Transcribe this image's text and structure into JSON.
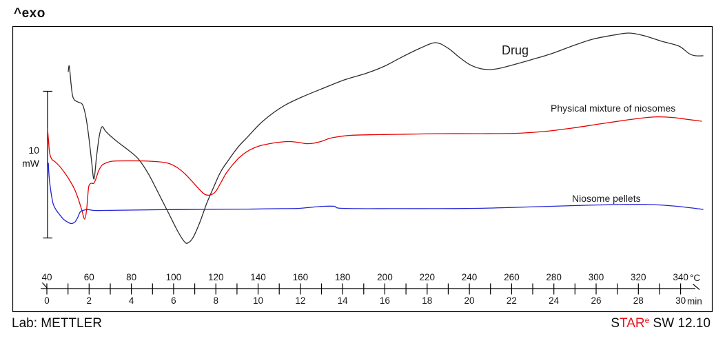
{
  "header": {
    "exo_label": "^exo"
  },
  "scale_bar": {
    "value": "10",
    "unit": "mW"
  },
  "axis": {
    "temp_unit": "°C",
    "time_unit": "min"
  },
  "footer": {
    "lab": "Lab: METTLER",
    "software": {
      "s": "S",
      "tar": "TAR",
      "e": "e",
      "rest": " SW 12.10"
    }
  },
  "colors": {
    "star_red": "#e8111c",
    "axis_black": "#000000"
  },
  "chart_data": {
    "type": "line",
    "description": "DSC thermogram, exothermic up (^exo), heat flow vs temperature/time",
    "x_axis": {
      "temp_min": 40,
      "temp_max": 340,
      "temp_unit": "°C",
      "tick_step_c": 10,
      "temp_labels": [
        40,
        60,
        80,
        100,
        120,
        140,
        160,
        180,
        200,
        220,
        240,
        260,
        280,
        300,
        320,
        340
      ],
      "time_min": 0,
      "time_max": 30,
      "time_unit": "min",
      "time_labels": [
        0,
        2,
        4,
        6,
        8,
        10,
        12,
        14,
        16,
        18,
        20,
        22,
        24,
        26,
        28,
        30
      ]
    },
    "y_axis": {
      "unit": "mW",
      "scale_bar_mw": 10,
      "absolute_scale": false
    },
    "legend_position": "labels-near-curves",
    "grid": false,
    "series": [
      {
        "id": "drug",
        "name": "Drug",
        "color": "#2d2d2d",
        "points": [
          [
            50.1,
            11.69
          ],
          [
            50.6,
            12.07
          ],
          [
            51.4,
            10.94
          ],
          [
            52.1,
            10.09
          ],
          [
            53.0,
            9.77
          ],
          [
            54.7,
            9.62
          ],
          [
            56.3,
            9.53
          ],
          [
            57.3,
            9.3
          ],
          [
            58.6,
            8.5
          ],
          [
            59.9,
            7.18
          ],
          [
            61.2,
            5.54
          ],
          [
            62.3,
            4.37
          ],
          [
            63.5,
            5.87
          ],
          [
            64.8,
            7.28
          ],
          [
            66.1,
            7.93
          ],
          [
            67.7,
            7.65
          ],
          [
            70.0,
            7.32
          ],
          [
            73.9,
            6.85
          ],
          [
            78.2,
            6.38
          ],
          [
            83.1,
            5.77
          ],
          [
            88.0,
            4.74
          ],
          [
            92.9,
            3.38
          ],
          [
            97.7,
            2.02
          ],
          [
            102.0,
            0.8
          ],
          [
            104.9,
            0.14
          ],
          [
            106.6,
            0.0
          ],
          [
            109.2,
            0.38
          ],
          [
            112.4,
            1.41
          ],
          [
            115.7,
            2.72
          ],
          [
            118.9,
            3.8
          ],
          [
            122.2,
            4.84
          ],
          [
            126.1,
            5.68
          ],
          [
            130.4,
            6.53
          ],
          [
            135.3,
            7.28
          ],
          [
            140.8,
            8.12
          ],
          [
            146.7,
            8.83
          ],
          [
            153.2,
            9.44
          ],
          [
            161.4,
            10.0
          ],
          [
            170.2,
            10.52
          ],
          [
            180.9,
            11.13
          ],
          [
            191.7,
            11.6
          ],
          [
            200.5,
            12.11
          ],
          [
            208.0,
            12.68
          ],
          [
            216.8,
            13.29
          ],
          [
            224.0,
            13.66
          ],
          [
            229.9,
            13.29
          ],
          [
            234.8,
            12.72
          ],
          [
            239.7,
            12.21
          ],
          [
            244.6,
            11.92
          ],
          [
            249.5,
            11.83
          ],
          [
            254.4,
            11.92
          ],
          [
            260.9,
            12.16
          ],
          [
            269.0,
            12.49
          ],
          [
            278.8,
            12.91
          ],
          [
            288.6,
            13.43
          ],
          [
            298.4,
            13.9
          ],
          [
            308.2,
            14.18
          ],
          [
            315.7,
            14.32
          ],
          [
            322.9,
            14.13
          ],
          [
            331.0,
            13.76
          ],
          [
            339.2,
            13.43
          ],
          [
            344.1,
            12.91
          ],
          [
            347.3,
            12.77
          ],
          [
            350.6,
            12.77
          ]
        ]
      },
      {
        "id": "mixture",
        "name": "Physical mixture of niosomes",
        "color": "#e60000",
        "points": [
          [
            40.3,
            7.84
          ],
          [
            40.8,
            6.95
          ],
          [
            41.3,
            6.15
          ],
          [
            42.3,
            5.73
          ],
          [
            43.9,
            5.54
          ],
          [
            45.9,
            5.26
          ],
          [
            48.2,
            4.84
          ],
          [
            50.4,
            4.37
          ],
          [
            53.0,
            3.71
          ],
          [
            55.0,
            2.96
          ],
          [
            56.6,
            2.21
          ],
          [
            57.9,
            1.64
          ],
          [
            58.8,
            2.25
          ],
          [
            59.4,
            3.29
          ],
          [
            59.9,
            3.9
          ],
          [
            60.9,
            4.08
          ],
          [
            62.2,
            4.08
          ],
          [
            63.2,
            4.37
          ],
          [
            64.5,
            4.93
          ],
          [
            66.1,
            5.31
          ],
          [
            68.4,
            5.49
          ],
          [
            71.6,
            5.59
          ],
          [
            79.8,
            5.61
          ],
          [
            88.0,
            5.59
          ],
          [
            94.5,
            5.52
          ],
          [
            98.4,
            5.4
          ],
          [
            102.0,
            5.12
          ],
          [
            105.9,
            4.65
          ],
          [
            109.8,
            4.04
          ],
          [
            112.8,
            3.57
          ],
          [
            115.0,
            3.31
          ],
          [
            117.6,
            3.29
          ],
          [
            119.9,
            3.52
          ],
          [
            122.2,
            4.08
          ],
          [
            124.8,
            4.74
          ],
          [
            127.8,
            5.31
          ],
          [
            131.0,
            5.82
          ],
          [
            134.3,
            6.2
          ],
          [
            137.9,
            6.48
          ],
          [
            141.8,
            6.67
          ],
          [
            146.7,
            6.81
          ],
          [
            151.6,
            6.9
          ],
          [
            155.8,
            6.92
          ],
          [
            159.7,
            6.85
          ],
          [
            163.0,
            6.78
          ],
          [
            166.3,
            6.81
          ],
          [
            170.2,
            6.95
          ],
          [
            173.8,
            7.14
          ],
          [
            177.7,
            7.25
          ],
          [
            184.2,
            7.35
          ],
          [
            194.0,
            7.39
          ],
          [
            207.0,
            7.42
          ],
          [
            226.6,
            7.46
          ],
          [
            246.2,
            7.46
          ],
          [
            262.5,
            7.49
          ],
          [
            275.5,
            7.61
          ],
          [
            288.6,
            7.84
          ],
          [
            301.6,
            8.12
          ],
          [
            314.7,
            8.4
          ],
          [
            324.5,
            8.57
          ],
          [
            329.4,
            8.61
          ],
          [
            335.9,
            8.57
          ],
          [
            342.4,
            8.45
          ],
          [
            349.9,
            8.31
          ]
        ]
      },
      {
        "id": "pellets",
        "name": "Niosome pellets",
        "color": "#2222d6",
        "points": [
          [
            40.7,
            5.45
          ],
          [
            41.1,
            4.46
          ],
          [
            42.0,
            3.43
          ],
          [
            42.9,
            2.72
          ],
          [
            44.2,
            2.3
          ],
          [
            45.9,
            1.97
          ],
          [
            47.8,
            1.64
          ],
          [
            50.1,
            1.41
          ],
          [
            51.7,
            1.34
          ],
          [
            53.4,
            1.46
          ],
          [
            54.7,
            1.78
          ],
          [
            55.7,
            2.11
          ],
          [
            57.0,
            2.23
          ],
          [
            59.6,
            2.28
          ],
          [
            62.2,
            2.23
          ],
          [
            66.8,
            2.23
          ],
          [
            76.5,
            2.25
          ],
          [
            96.1,
            2.28
          ],
          [
            115.7,
            2.3
          ],
          [
            135.3,
            2.32
          ],
          [
            151.6,
            2.35
          ],
          [
            159.7,
            2.37
          ],
          [
            166.3,
            2.46
          ],
          [
            171.2,
            2.51
          ],
          [
            176.1,
            2.51
          ],
          [
            178.0,
            2.39
          ],
          [
            187.5,
            2.35
          ],
          [
            203.8,
            2.35
          ],
          [
            223.4,
            2.35
          ],
          [
            243.0,
            2.37
          ],
          [
            262.5,
            2.44
          ],
          [
            278.8,
            2.51
          ],
          [
            295.1,
            2.58
          ],
          [
            311.4,
            2.63
          ],
          [
            324.5,
            2.63
          ],
          [
            334.3,
            2.56
          ],
          [
            344.1,
            2.42
          ],
          [
            350.6,
            2.3
          ]
        ]
      }
    ]
  }
}
